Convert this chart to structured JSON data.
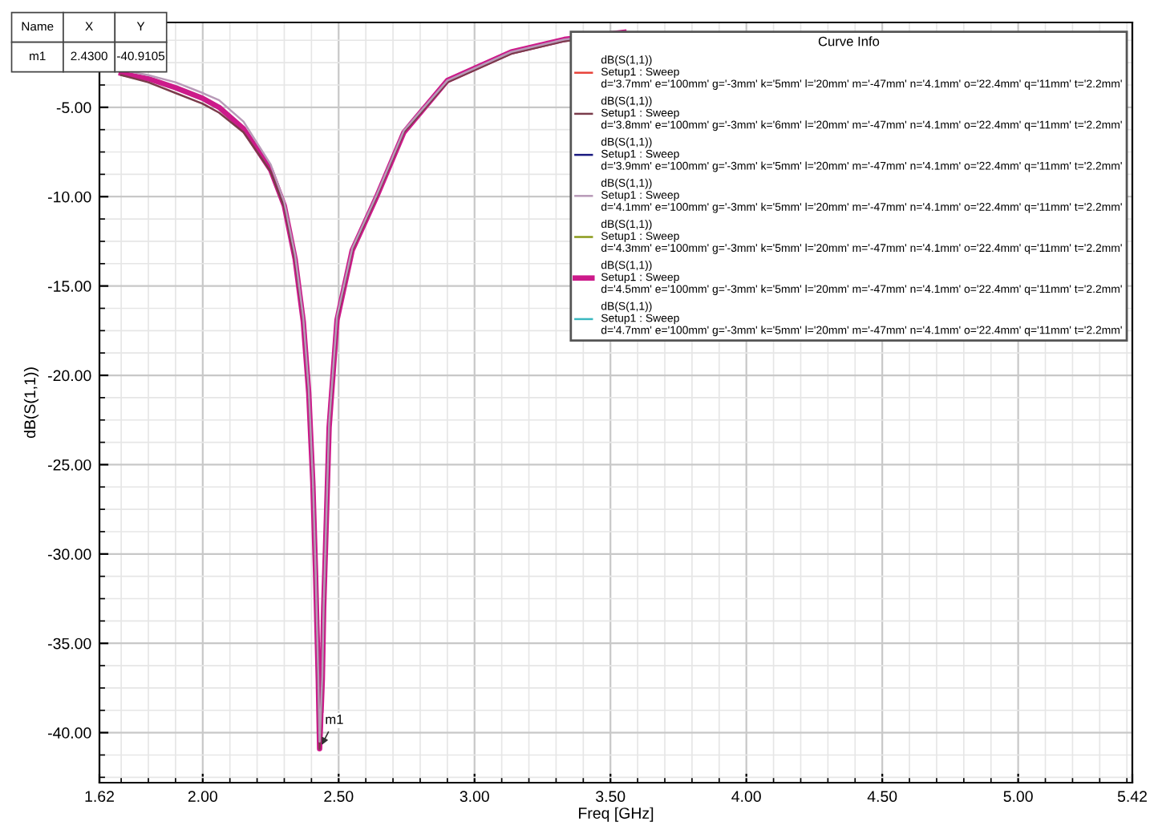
{
  "chart_data": {
    "type": "line",
    "xlabel": "Freq [GHz]",
    "ylabel": "dB(S(1,1))",
    "legend_title": "Curve Info",
    "legend": "top right",
    "grid": true,
    "marker": "none",
    "line_style": "solid",
    "xlim": [
      1.62,
      5.42
    ],
    "ylim": [
      -42.8,
      -0.25
    ],
    "xticks": [
      {
        "value": 1.62,
        "label": "1.62"
      },
      {
        "value": 2.0,
        "label": "2.00"
      },
      {
        "value": 2.5,
        "label": "2.50"
      },
      {
        "value": 3.0,
        "label": "3.00"
      },
      {
        "value": 3.5,
        "label": "3.50"
      },
      {
        "value": 4.0,
        "label": "4.00"
      },
      {
        "value": 4.5,
        "label": "4.50"
      },
      {
        "value": 5.0,
        "label": "5.00"
      },
      {
        "value": 5.42,
        "label": "5.42"
      }
    ],
    "yticks": [
      {
        "value": -5,
        "label": "-5.00"
      },
      {
        "value": -10,
        "label": "-10.00"
      },
      {
        "value": -15,
        "label": "-15.00"
      },
      {
        "value": -20,
        "label": "-20.00"
      },
      {
        "value": -25,
        "label": "-25.00"
      },
      {
        "value": -30,
        "label": "-30.00"
      },
      {
        "value": -35,
        "label": "-35.00"
      },
      {
        "value": -40,
        "label": "-40.00"
      }
    ],
    "x": [
      1.7,
      1.8,
      1.9,
      2.0,
      2.06,
      2.15,
      2.25,
      2.3,
      2.34,
      2.37,
      2.39,
      2.405,
      2.415,
      2.425,
      2.43,
      2.44,
      2.445,
      2.455,
      2.465,
      2.494,
      2.55,
      2.64,
      2.74,
      2.9,
      3.135,
      3.33,
      3.55
    ],
    "series": [
      {
        "name": "dB(S(1,1))\nSetup1 : Sweep\nd='3.7mm' e='100mm' g='-3mm' k='5mm' l='20mm' m='-47mm' n='4.1mm' o='22.4mm' q='11mm' t='2.2mm'",
        "color": "#e8433a",
        "values": [
          null,
          null,
          null,
          null,
          null,
          null,
          null,
          null,
          null,
          null,
          null,
          null,
          null,
          null,
          null,
          null,
          null,
          null,
          null,
          null,
          null,
          null,
          null,
          null,
          null,
          null,
          null
        ]
      },
      {
        "name": "dB(S(1,1))\nSetup1 : Sweep\nd='3.8mm' e='100mm' g='-3mm' k='6mm' l='20mm' m='-47mm' n='4.1mm' o='22.4mm' q='11mm' t='2.2mm'",
        "color": "#7a3b4a",
        "values": [
          -3.2,
          -3.6,
          -4.2,
          -4.8,
          -5.3,
          -6.4,
          -8.6,
          -10.6,
          -13.6,
          -17.0,
          -21.0,
          -26.0,
          -31.0,
          -37.0,
          -40.9,
          -37.0,
          -33.0,
          -28.0,
          -22.9,
          -16.9,
          -13.0,
          -10.0,
          -6.4,
          -3.6,
          -2.0,
          -1.3,
          -0.8
        ]
      },
      {
        "name": "dB(S(1,1))\nSetup1 : Sweep\nd='3.9mm' e='100mm' g='-3mm' k='5mm' l='20mm' m='-47mm' n='4.1mm' o='22.4mm' q='11mm' t='2.2mm'",
        "color": "#1a1a80",
        "values": [
          null,
          null,
          null,
          null,
          null,
          null,
          null,
          null,
          null,
          null,
          null,
          null,
          null,
          null,
          null,
          null,
          null,
          null,
          null,
          null,
          null,
          null,
          null,
          null,
          null,
          null,
          null
        ]
      },
      {
        "name": "dB(S(1,1))\nSetup1 : Sweep\nd='4.1mm' e='100mm' g='-3mm' k='5mm' l='20mm' m='-47mm' n='4.1mm' o='22.4mm' q='11mm' t='2.2mm'",
        "color": "#b89ab8",
        "values": [
          -2.9,
          -3.2,
          -3.6,
          -4.2,
          -4.6,
          -5.8,
          -8.2,
          -10.3,
          -13.3,
          -16.8,
          -20.8,
          -25.8,
          -30.8,
          -36.8,
          -40.5,
          -36.8,
          -32.8,
          -27.8,
          -22.7,
          -16.7,
          -12.9,
          -9.9,
          -6.3,
          -3.5,
          -1.9,
          -1.2,
          -0.8
        ]
      },
      {
        "name": "dB(S(1,1))\nSetup1 : Sweep\nd='4.3mm' e='100mm' g='-3mm' k='5mm' l='20mm' m='-47mm' n='4.1mm' o='22.4mm' q='11mm' t='2.2mm'",
        "color": "#8a9a1a",
        "values": [
          null,
          null,
          null,
          null,
          null,
          null,
          null,
          null,
          null,
          null,
          null,
          null,
          null,
          null,
          null,
          null,
          null,
          null,
          null,
          null,
          null,
          null,
          null,
          null,
          null,
          null,
          null
        ]
      },
      {
        "name": "dB(S(1,1))\nSetup1 : Sweep\nd='4.5mm' e='100mm' g='-3mm' k='5mm' l='20mm' m='-47mm' n='4.1mm' o='22.4mm' q='11mm' t='2.2mm'",
        "color": "#cc1a8a",
        "values": [
          -3.1,
          -3.4,
          -3.9,
          -4.5,
          -5.0,
          -6.2,
          -8.5,
          -10.5,
          -13.5,
          -17.0,
          -21.0,
          -26.0,
          -31.0,
          -37.0,
          -40.9,
          -37.0,
          -33.0,
          -28.0,
          -22.9,
          -16.9,
          -13.0,
          -10.0,
          -6.4,
          -3.5,
          -1.9,
          -1.2,
          -0.8
        ]
      },
      {
        "name": "dB(S(1,1))\nSetup1 : Sweep\nd='4.7mm' e='100mm' g='-3mm' k='5mm' l='20mm' m='-47mm' n='4.1mm' o='22.4mm' q='11mm' t='2.2mm'",
        "color": "#3ab8c0",
        "values": [
          null,
          null,
          null,
          null,
          null,
          null,
          null,
          null,
          null,
          null,
          null,
          null,
          null,
          null,
          null,
          null,
          null,
          null,
          null,
          null,
          null,
          null,
          null,
          null,
          null,
          null,
          null
        ]
      }
    ],
    "annotations": [
      {
        "text": "m1",
        "x": 2.43,
        "y": -40.9105
      },
      "Name",
      "X",
      "Y",
      "m1",
      "2.4300",
      "-40.9105"
    ]
  }
}
